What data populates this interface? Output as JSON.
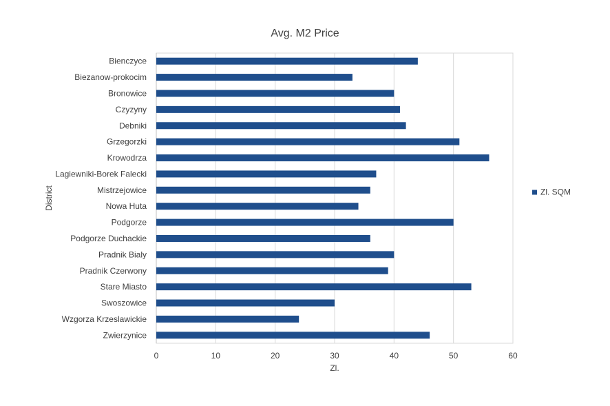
{
  "chart_data": {
    "type": "bar",
    "orientation": "horizontal",
    "title": "Avg. M2 Price",
    "xlabel": "Zl.",
    "ylabel": "District",
    "xlim": [
      0,
      60
    ],
    "xticks": [
      0,
      10,
      20,
      30,
      40,
      50,
      60
    ],
    "grid": true,
    "legend_position": "right",
    "categories": [
      "Bienczyce",
      "Biezanow-prokocim",
      "Bronowice",
      "Czyzyny",
      "Debniki",
      "Grzegorzki",
      "Krowodrza",
      "Lagiewniki-Borek Falecki",
      "Mistrzejowice",
      "Nowa Huta",
      "Podgorze",
      "Podgorze Duchackie",
      "Pradnik Bialy",
      "Pradnik Czerwony",
      "Stare Miasto",
      "Swoszowice",
      "Wzgorza Krzeslawickie",
      "Zwierzynice"
    ],
    "series": [
      {
        "name": "Zl. SQM",
        "color": "#1f4e8c",
        "values": [
          44,
          33,
          40,
          41,
          42,
          51,
          56,
          37,
          36,
          34,
          50,
          36,
          40,
          39,
          53,
          30,
          24,
          46
        ]
      }
    ]
  }
}
